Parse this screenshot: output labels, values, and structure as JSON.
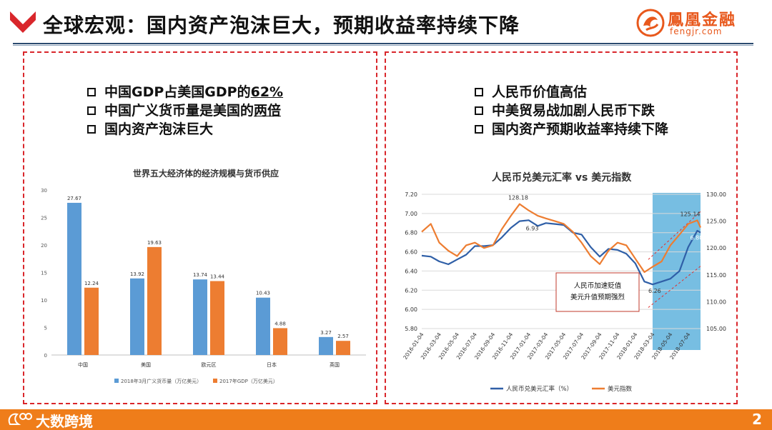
{
  "header": {
    "title": "全球宏观：国内资产泡沫巨大，预期收益率持续下降",
    "logo_cn": "鳳凰金融",
    "logo_en": "fengjr.com",
    "accent": "#d9262b",
    "logo_color": "#e8581c"
  },
  "left_panel": {
    "bullets": [
      {
        "prefix": "中国GDP占美国GDP的",
        "emph": "62%"
      },
      {
        "prefix": "中国广义货币量是美国的",
        "emph": "两倍"
      },
      {
        "prefix": "国内资产泡沫巨大",
        "emph": ""
      }
    ]
  },
  "right_panel": {
    "bullets": [
      "人民币价值高估",
      "中美贸易战加剧人民币下跌",
      "国内资产预期收益率持续下降"
    ],
    "callout": [
      "人民币加速贬值",
      "美元升值预期强烈"
    ]
  },
  "chart_data": [
    {
      "type": "bar",
      "title": "世界五大经济体的经济规模与货币供应",
      "categories": [
        "中国",
        "美国",
        "欧元区",
        "日本",
        "英国"
      ],
      "series": [
        {
          "name": "2018年3月广义货币量（万亿美元）",
          "values": [
            27.67,
            13.92,
            13.74,
            10.43,
            3.27
          ],
          "color": "#5b9bd5"
        },
        {
          "name": "2017年GDP（万亿美元）",
          "values": [
            12.24,
            19.63,
            13.44,
            4.88,
            2.57
          ],
          "color": "#ed7d31"
        }
      ],
      "ylim": [
        0,
        30
      ],
      "yticks": [
        "0",
        "5",
        "10",
        "15",
        "20",
        "25",
        "30"
      ],
      "grid": false,
      "legend": "bottom"
    },
    {
      "type": "line",
      "title": "人民币兑美元汇率 vs 美元指数",
      "x_ticks": [
        "2016-01-04",
        "2016-03-04",
        "2016-05-04",
        "2016-07-04",
        "2016-09-04",
        "2016-11-04",
        "2017-01-04",
        "2017-03-04",
        "2017-05-04",
        "2017-07-04",
        "2017-09-04",
        "2017-11-04",
        "2018-01-04",
        "2018-03-04",
        "2018-05-04",
        "2018-07-04"
      ],
      "y_left_ticks": [
        "5.80",
        "6.00",
        "6.20",
        "6.40",
        "6.60",
        "6.80",
        "7.00",
        "7.20"
      ],
      "y_right_ticks": [
        "105.00",
        "110.00",
        "115.00",
        "120.00",
        "125.00",
        "130.00"
      ],
      "ylim_left": [
        5.8,
        7.2
      ],
      "ylim_right": [
        105,
        130
      ],
      "grid": true,
      "legend": "bottom",
      "highlight_range": [
        "2018-03-04",
        "2018-08-15"
      ],
      "highlight_color": "#4aa8d8",
      "series": [
        {
          "name": "人民币兑美元汇率（%）",
          "axis": "left",
          "color": "#2f5fa7",
          "x": [
            "2016-01-04",
            "2016-02-04",
            "2016-03-04",
            "2016-04-04",
            "2016-05-04",
            "2016-06-04",
            "2016-07-04",
            "2016-08-04",
            "2016-09-04",
            "2016-10-04",
            "2016-11-04",
            "2016-12-04",
            "2017-01-04",
            "2017-02-04",
            "2017-03-04",
            "2017-04-04",
            "2017-05-04",
            "2017-06-04",
            "2017-07-04",
            "2017-08-04",
            "2017-09-04",
            "2017-10-04",
            "2017-11-04",
            "2017-12-04",
            "2018-01-04",
            "2018-02-04",
            "2018-03-04",
            "2018-04-04",
            "2018-05-04",
            "2018-06-04",
            "2018-07-04",
            "2018-08-04",
            "2018-08-15"
          ],
          "values": [
            6.56,
            6.55,
            6.5,
            6.47,
            6.52,
            6.57,
            6.66,
            6.66,
            6.67,
            6.75,
            6.85,
            6.92,
            6.93,
            6.87,
            6.9,
            6.89,
            6.88,
            6.8,
            6.78,
            6.65,
            6.55,
            6.63,
            6.62,
            6.58,
            6.48,
            6.29,
            6.26,
            6.29,
            6.32,
            6.4,
            6.65,
            6.82,
            6.8
          ]
        },
        {
          "name": "美元指数",
          "axis": "right",
          "color": "#ed7d31",
          "x": [
            "2016-01-04",
            "2016-02-04",
            "2016-03-04",
            "2016-04-04",
            "2016-05-04",
            "2016-06-04",
            "2016-07-04",
            "2016-08-04",
            "2016-09-04",
            "2016-10-04",
            "2016-11-04",
            "2016-12-04",
            "2017-01-04",
            "2017-02-04",
            "2017-03-04",
            "2017-04-04",
            "2017-05-04",
            "2017-06-04",
            "2017-07-04",
            "2017-08-04",
            "2017-09-04",
            "2017-10-04",
            "2017-11-04",
            "2017-12-04",
            "2018-01-04",
            "2018-02-04",
            "2018-03-04",
            "2018-04-04",
            "2018-05-04",
            "2018-06-04",
            "2018-07-04",
            "2018-08-04",
            "2018-08-15"
          ],
          "values": [
            123.0,
            124.5,
            121.0,
            119.5,
            118.5,
            120.5,
            121.0,
            120.0,
            120.5,
            123.5,
            126.0,
            128.18,
            127.0,
            126.0,
            125.5,
            125.0,
            124.5,
            123.0,
            121.0,
            118.5,
            117.0,
            119.5,
            121.0,
            120.5,
            118.0,
            115.5,
            116.5,
            117.5,
            120.5,
            122.5,
            124.5,
            125.14,
            123.8
          ]
        }
      ],
      "annotations": [
        "128.18",
        "6.93",
        "6.26",
        "6.80",
        "125.14"
      ]
    }
  ],
  "footer": {
    "brand": "大数跨境",
    "page": "2",
    "bar_color": "#ef7d1a"
  }
}
